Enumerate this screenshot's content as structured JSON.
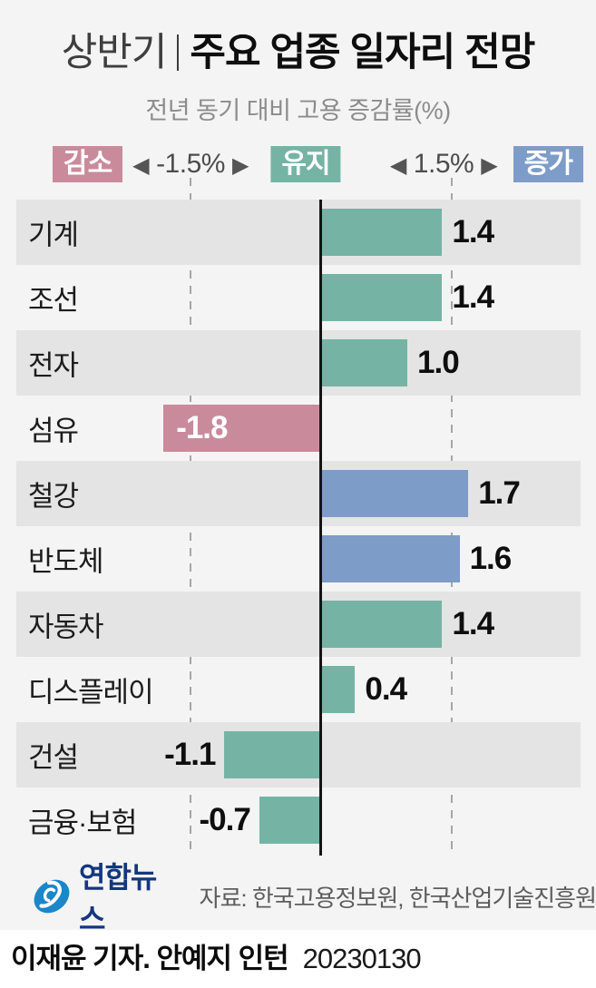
{
  "header": {
    "title_prefix": "상반기",
    "title_main": "주요 업종 일자리 전망",
    "subtitle": "전년 동기 대비 고용 증감률(%)"
  },
  "legend": {
    "decrease_label": "감소",
    "decrease_threshold": "-1.5%",
    "maintain_label": "유지",
    "increase_threshold": "1.5%",
    "increase_label": "증가",
    "left_arrow": "◀",
    "right_arrow": "▶"
  },
  "colors": {
    "maintain": "#75b4a5",
    "increase": "#7e9cc8",
    "decrease": "#c98b9b",
    "stripe": "#e4e4e4",
    "background": "#f4f4f4",
    "zero_line": "#141414",
    "dashed_line": "#a6a6a6",
    "logo_blue": "#1b87c9",
    "logo_navy": "#14377d"
  },
  "chart_data": {
    "type": "bar",
    "orientation": "horizontal",
    "title": "상반기 주요 업종 일자리 전망",
    "subtitle": "전년 동기 대비 고용 증감률(%)",
    "unit": "%",
    "categories": [
      "기계",
      "조선",
      "전자",
      "섬유",
      "철강",
      "반도체",
      "자동차",
      "디스플레이",
      "건설",
      "금융·보험"
    ],
    "values": [
      1.4,
      1.4,
      1.0,
      -1.8,
      1.7,
      1.6,
      1.4,
      0.4,
      -1.1,
      -0.7
    ],
    "classes": [
      "maintain",
      "maintain",
      "maintain",
      "decrease",
      "increase",
      "increase",
      "maintain",
      "maintain",
      "maintain",
      "maintain"
    ],
    "thresholds": {
      "decrease_below": -1.5,
      "increase_above": 1.5
    },
    "gridlines": [
      -1.5,
      0,
      1.5
    ],
    "xlim": [
      -3.5,
      3.0
    ],
    "legend_position": "top",
    "grid": "dashed-vertical",
    "row_striping": true
  },
  "footer": {
    "logo_text": "연합뉴스",
    "source": "자료: 한국고용정보원, 한국산업기술진흥원",
    "byline": "이재윤 기자. 안예지 인턴",
    "date": "20230130"
  }
}
